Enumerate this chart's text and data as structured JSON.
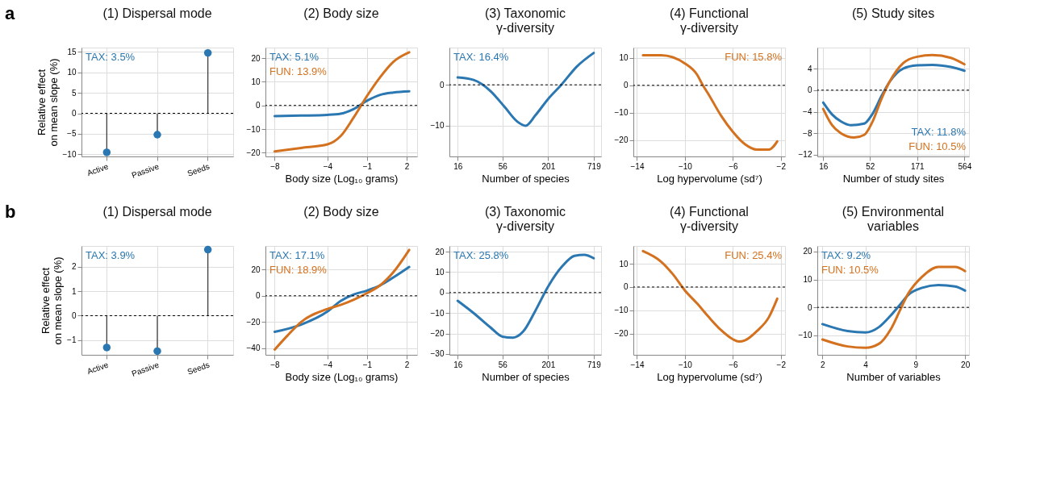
{
  "chart_data": [
    {
      "type": "lollipop",
      "title": "(1) Dispersal mode",
      "ylabel": "Relative effect\non mean slope (%)",
      "annotations": [
        "a"
      ],
      "categories": [
        "Active",
        "Passive",
        "Seeds"
      ],
      "ylim": [
        -10.5,
        16
      ],
      "yticks": [
        -10,
        -5,
        0,
        5,
        10,
        15
      ],
      "grid": true,
      "legend": "top left",
      "ref_lines": [
        {
          "axis": "y",
          "value": 0,
          "line_style": "dashed",
          "color": "#000000"
        }
      ],
      "series": [
        {
          "name": "TAX: 3.5%",
          "color": "#2a77b1",
          "values": [
            -9.5,
            -5.2,
            14.7
          ]
        }
      ]
    },
    {
      "type": "line",
      "title": "(2) Body size",
      "xlabel": "Body size (Log₁₀ grams)",
      "xlim": [
        -8.7,
        2.8
      ],
      "xticks": [
        -8,
        -4,
        -1,
        2
      ],
      "ylim": [
        -21.6,
        24.5
      ],
      "yticks": [
        -20,
        -10,
        0,
        10,
        20
      ],
      "grid": true,
      "legend": "top left",
      "ref_lines": [
        {
          "axis": "y",
          "value": 0,
          "line_style": "dashed",
          "color": "#000000"
        }
      ],
      "series": [
        {
          "name": "TAX: 5.1%",
          "color": "#2a77b1",
          "x": [
            -8,
            -6,
            -4,
            -3,
            -2,
            -1,
            0,
            1,
            2.2
          ],
          "values": [
            -4.5,
            -4.3,
            -4,
            -3.5,
            -1.5,
            2,
            4.5,
            5.5,
            6
          ]
        },
        {
          "name": "FUN: 13.9%",
          "color": "#d4711f",
          "x": [
            -8,
            -6,
            -4,
            -3,
            -2,
            -1,
            0,
            1,
            2.2
          ],
          "values": [
            -19.5,
            -18,
            -16.5,
            -13,
            -5,
            4,
            12,
            18.5,
            22.5
          ]
        }
      ]
    },
    {
      "type": "line",
      "title": "(3) Taxonomic\nγ-diversity",
      "xlabel": "Number of species",
      "log": "x",
      "xlim": [
        12.7,
        883
      ],
      "xticks": [
        16,
        56,
        201,
        719
      ],
      "ylim": [
        -17.5,
        9.1
      ],
      "yticks": [
        -10,
        0
      ],
      "grid": true,
      "legend": "top left",
      "ref_lines": [
        {
          "axis": "y",
          "value": 0,
          "line_style": "dashed",
          "color": "#000000"
        }
      ],
      "series": [
        {
          "name": "TAX: 16.4%",
          "color": "#2a77b1",
          "x": [
            16,
            25,
            40,
            60,
            85,
            107,
            140,
            200,
            290,
            450,
            719
          ],
          "values": [
            1.8,
            1.2,
            -1.5,
            -5.5,
            -9,
            -10,
            -7.5,
            -3.5,
            0,
            4.5,
            7.8
          ]
        }
      ]
    },
    {
      "type": "line",
      "title": "(4) Functional\nγ-diversity",
      "xlabel": "Log hypervolume (sd⁷)",
      "xlim": [
        -14.3,
        -1.65
      ],
      "xticks": [
        -14,
        -10,
        -6,
        -2
      ],
      "ylim": [
        -26,
        13.8
      ],
      "yticks": [
        -20,
        -10,
        0,
        10
      ],
      "grid": true,
      "legend": "top right",
      "ref_lines": [
        {
          "axis": "y",
          "value": 0,
          "line_style": "dashed",
          "color": "#000000"
        }
      ],
      "series": [
        {
          "name": "FUN: 15.8%",
          "color": "#d4711f",
          "x": [
            -13.5,
            -12,
            -10,
            -9,
            -8.5,
            -8,
            -7,
            -6,
            -5,
            -4,
            -3,
            -2.3
          ],
          "values": [
            11,
            11,
            8,
            4,
            0,
            -3.5,
            -11,
            -17,
            -21.5,
            -23.5,
            -23.5,
            -20.5
          ]
        }
      ]
    },
    {
      "type": "line",
      "title": "(5) Study sites",
      "xlabel": "Number of study sites",
      "log": "x",
      "xlim": [
        13.8,
        632
      ],
      "xticks": [
        16,
        52,
        171,
        564
      ],
      "ylim": [
        -12.3,
        7.9
      ],
      "yticks": [
        -12,
        -8,
        -4,
        0,
        4
      ],
      "grid": true,
      "legend": "bottom right",
      "ref_lines": [
        {
          "axis": "y",
          "value": 0,
          "line_style": "dashed",
          "color": "#000000"
        }
      ],
      "series": [
        {
          "name": "TAX: 11.8%",
          "color": "#2a77b1",
          "x": [
            16,
            20,
            25,
            32,
            45,
            55,
            70,
            85,
            120,
            171,
            250,
            400,
            564
          ],
          "values": [
            -2.3,
            -4.5,
            -5.8,
            -6.5,
            -6.2,
            -4.5,
            -1,
            1.5,
            4,
            4.6,
            4.7,
            4.3,
            3.6
          ]
        },
        {
          "name": "FUN: 10.5%",
          "color": "#d4711f",
          "x": [
            16,
            20,
            25,
            35,
            45,
            55,
            70,
            85,
            120,
            171,
            250,
            400,
            564
          ],
          "values": [
            -3.5,
            -6.5,
            -8,
            -8.8,
            -8.3,
            -6,
            -1.5,
            1.5,
            5,
            6.2,
            6.5,
            6,
            4.8
          ]
        }
      ]
    },
    {
      "type": "lollipop",
      "title": "(1) Dispersal mode",
      "ylabel": "Relative effect\non mean slope (%)",
      "annotations": [
        "b"
      ],
      "categories": [
        "Active",
        "Passive",
        "Seeds"
      ],
      "ylim": [
        -1.6,
        2.85
      ],
      "yticks": [
        -1,
        0,
        1,
        2
      ],
      "grid": true,
      "legend": "top left",
      "ref_lines": [
        {
          "axis": "y",
          "value": 0,
          "line_style": "dashed",
          "color": "#000000"
        }
      ],
      "series": [
        {
          "name": "TAX: 3.9%",
          "color": "#2a77b1",
          "values": [
            -1.3,
            -1.45,
            2.7
          ]
        }
      ]
    },
    {
      "type": "line",
      "title": "(2) Body size",
      "xlabel": "Body size (Log₁₀ grams)",
      "xlim": [
        -8.7,
        2.8
      ],
      "xticks": [
        -8,
        -4,
        -1,
        2
      ],
      "ylim": [
        -45,
        38
      ],
      "yticks": [
        -40,
        -20,
        0,
        20
      ],
      "grid": true,
      "legend": "top left",
      "ref_lines": [
        {
          "axis": "y",
          "value": 0,
          "line_style": "dashed",
          "color": "#000000"
        }
      ],
      "series": [
        {
          "name": "TAX: 17.1%",
          "color": "#2a77b1",
          "x": [
            -8,
            -6,
            -4,
            -3,
            -2,
            -1,
            0,
            1,
            2.2
          ],
          "values": [
            -27.5,
            -22,
            -12,
            -4,
            1,
            4,
            8,
            14,
            22
          ]
        },
        {
          "name": "FUN: 18.9%",
          "color": "#d4711f",
          "x": [
            -8,
            -7,
            -6,
            -4,
            -3,
            -2,
            -1,
            0,
            1,
            2.2
          ],
          "values": [
            -41,
            -30,
            -20,
            -10,
            -7,
            -3,
            2,
            8,
            18,
            35
          ]
        }
      ]
    },
    {
      "type": "line",
      "title": "(3) Taxonomic\nγ-diversity",
      "xlabel": "Number of species",
      "log": "x",
      "xlim": [
        12.7,
        883
      ],
      "xticks": [
        16,
        56,
        201,
        719
      ],
      "ylim": [
        -30.4,
        22.8
      ],
      "yticks": [
        -30,
        -20,
        -10,
        0,
        10,
        20
      ],
      "grid": true,
      "legend": "top left",
      "ref_lines": [
        {
          "axis": "y",
          "value": 0,
          "line_style": "dashed",
          "color": "#000000"
        }
      ],
      "series": [
        {
          "name": "TAX: 25.8%",
          "color": "#2a77b1",
          "x": [
            16,
            25,
            40,
            56,
            75,
            100,
            140,
            201,
            300,
            420,
            550,
            719
          ],
          "values": [
            -4,
            -10,
            -17,
            -21.5,
            -22,
            -19,
            -9,
            3,
            13,
            18,
            18.5,
            16.8
          ]
        }
      ]
    },
    {
      "type": "line",
      "title": "(4) Functional\nγ-diversity",
      "xlabel": "Log hypervolume (sd⁷)",
      "xlim": [
        -14.3,
        -1.65
      ],
      "xticks": [
        -14,
        -10,
        -6,
        -2
      ],
      "ylim": [
        -29.2,
        17.7
      ],
      "yticks": [
        -20,
        -10,
        0,
        10
      ],
      "grid": true,
      "legend": "top right",
      "ref_lines": [
        {
          "axis": "y",
          "value": 0,
          "line_style": "dashed",
          "color": "#000000"
        }
      ],
      "series": [
        {
          "name": "FUN: 25.4%",
          "color": "#d4711f",
          "x": [
            -13.5,
            -12,
            -11,
            -10,
            -9,
            -8,
            -7,
            -6,
            -5.5,
            -5,
            -4,
            -3,
            -2.3
          ],
          "values": [
            15.5,
            11,
            5.5,
            -1.5,
            -7,
            -13,
            -18.5,
            -22.5,
            -23.5,
            -23,
            -19,
            -13,
            -5
          ]
        }
      ]
    },
    {
      "type": "line",
      "title": "(5) Environmental\nvariables",
      "xlabel": "Number of variables",
      "log": "x",
      "xlim": [
        1.84,
        21.3
      ],
      "xticks": [
        2,
        4,
        9,
        20
      ],
      "ylim": [
        -17,
        22
      ],
      "yticks": [
        -10,
        0,
        10,
        20
      ],
      "grid": true,
      "legend": "top left",
      "ref_lines": [
        {
          "axis": "y",
          "value": 0,
          "line_style": "dashed",
          "color": "#000000"
        }
      ],
      "series": [
        {
          "name": "TAX: 9.2%",
          "color": "#2a77b1",
          "x": [
            2,
            3,
            4,
            5,
            6,
            7,
            8,
            10,
            13,
            17,
            20
          ],
          "values": [
            -6,
            -8.5,
            -9,
            -7,
            -3,
            1,
            4.5,
            7,
            8,
            7.5,
            6
          ]
        },
        {
          "name": "FUN: 10.5%",
          "color": "#d4711f",
          "x": [
            2,
            3,
            4,
            5,
            6,
            7,
            8,
            10,
            13,
            17,
            20
          ],
          "values": [
            -11.5,
            -14,
            -14.5,
            -13,
            -8,
            -1,
            5,
            11,
            14.5,
            14.5,
            13
          ]
        }
      ]
    }
  ]
}
